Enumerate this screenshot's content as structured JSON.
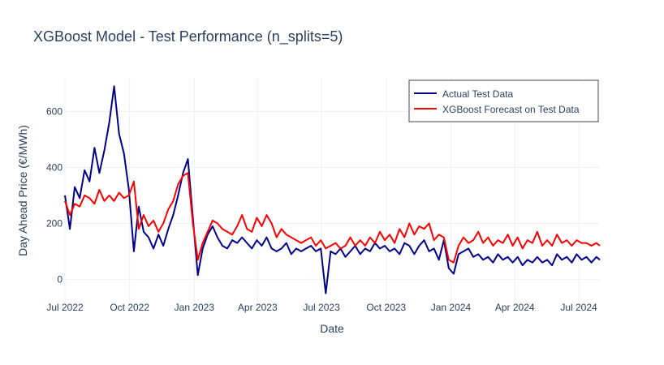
{
  "chart_data": {
    "type": "line",
    "title": "XGBoost Model - Test Performance (n_splits=5)",
    "xlabel": "Date",
    "ylabel": "Day Ahead Price (€/MWh)",
    "x_range": [
      "2022-07-01",
      "2024-07-31"
    ],
    "ylim": [
      -80,
      720
    ],
    "yticks": [
      0,
      200,
      400,
      600
    ],
    "xticks": [
      {
        "date": "2022-07-01",
        "label": "Jul 2022"
      },
      {
        "date": "2022-10-01",
        "label": "Oct 2022"
      },
      {
        "date": "2023-01-01",
        "label": "Jan 2023"
      },
      {
        "date": "2023-04-01",
        "label": "Apr 2023"
      },
      {
        "date": "2023-07-01",
        "label": "Jul 2023"
      },
      {
        "date": "2023-10-01",
        "label": "Oct 2023"
      },
      {
        "date": "2024-01-01",
        "label": "Jan 2024"
      },
      {
        "date": "2024-04-01",
        "label": "Apr 2024"
      },
      {
        "date": "2024-07-01",
        "label": "Jul 2024"
      }
    ],
    "grid": true,
    "legend_position": "top-right",
    "series": [
      {
        "name": "Actual Test Data",
        "color": "#00008b",
        "x": [
          "2022-07-01",
          "2022-07-08",
          "2022-07-15",
          "2022-07-22",
          "2022-07-29",
          "2022-08-05",
          "2022-08-12",
          "2022-08-19",
          "2022-08-26",
          "2022-09-02",
          "2022-09-09",
          "2022-09-16",
          "2022-09-23",
          "2022-09-30",
          "2022-10-07",
          "2022-10-14",
          "2022-10-21",
          "2022-10-28",
          "2022-11-04",
          "2022-11-11",
          "2022-11-18",
          "2022-11-25",
          "2022-12-02",
          "2022-12-09",
          "2022-12-16",
          "2022-12-23",
          "2022-12-30",
          "2023-01-06",
          "2023-01-13",
          "2023-01-20",
          "2023-01-27",
          "2023-02-03",
          "2023-02-10",
          "2023-02-17",
          "2023-02-24",
          "2023-03-03",
          "2023-03-10",
          "2023-03-17",
          "2023-03-24",
          "2023-03-31",
          "2023-04-07",
          "2023-04-14",
          "2023-04-21",
          "2023-04-28",
          "2023-05-05",
          "2023-05-12",
          "2023-05-19",
          "2023-05-26",
          "2023-06-02",
          "2023-06-09",
          "2023-06-16",
          "2023-06-23",
          "2023-06-30",
          "2023-07-07",
          "2023-07-14",
          "2023-07-21",
          "2023-07-28",
          "2023-08-04",
          "2023-08-11",
          "2023-08-18",
          "2023-08-25",
          "2023-09-01",
          "2023-09-08",
          "2023-09-15",
          "2023-09-22",
          "2023-09-29",
          "2023-10-06",
          "2023-10-13",
          "2023-10-20",
          "2023-10-27",
          "2023-11-03",
          "2023-11-10",
          "2023-11-17",
          "2023-11-24",
          "2023-12-01",
          "2023-12-08",
          "2023-12-15",
          "2023-12-22",
          "2023-12-29",
          "2024-01-05",
          "2024-01-12",
          "2024-01-19",
          "2024-01-26",
          "2024-02-02",
          "2024-02-09",
          "2024-02-16",
          "2024-02-23",
          "2024-03-01",
          "2024-03-08",
          "2024-03-15",
          "2024-03-22",
          "2024-03-29",
          "2024-04-05",
          "2024-04-12",
          "2024-04-19",
          "2024-04-26",
          "2024-05-03",
          "2024-05-10",
          "2024-05-17",
          "2024-05-24",
          "2024-05-31",
          "2024-06-07",
          "2024-06-14",
          "2024-06-21",
          "2024-06-28",
          "2024-07-05",
          "2024-07-12",
          "2024-07-19",
          "2024-07-26",
          "2024-07-31"
        ],
        "values": [
          300,
          180,
          330,
          290,
          390,
          350,
          470,
          380,
          460,
          560,
          690,
          520,
          450,
          320,
          100,
          260,
          170,
          150,
          110,
          160,
          120,
          180,
          230,
          300,
          380,
          430,
          220,
          15,
          110,
          160,
          190,
          150,
          120,
          110,
          140,
          130,
          150,
          130,
          110,
          140,
          120,
          150,
          110,
          100,
          110,
          130,
          90,
          110,
          100,
          110,
          120,
          100,
          110,
          -50,
          100,
          90,
          110,
          80,
          100,
          120,
          90,
          110,
          100,
          130,
          110,
          120,
          100,
          110,
          90,
          130,
          120,
          90,
          120,
          140,
          100,
          110,
          70,
          140,
          40,
          20,
          90,
          100,
          110,
          80,
          90,
          70,
          80,
          60,
          90,
          70,
          80,
          60,
          80,
          50,
          70,
          60,
          80,
          60,
          70,
          50,
          90,
          70,
          80,
          60,
          90,
          70,
          80,
          60,
          80,
          70
        ]
      },
      {
        "name": "XGBoost Forecast on Test Data",
        "color": "#ff0000",
        "x": [
          "2022-07-01",
          "2022-07-08",
          "2022-07-15",
          "2022-07-22",
          "2022-07-29",
          "2022-08-05",
          "2022-08-12",
          "2022-08-19",
          "2022-08-26",
          "2022-09-02",
          "2022-09-09",
          "2022-09-16",
          "2022-09-23",
          "2022-09-30",
          "2022-10-07",
          "2022-10-14",
          "2022-10-21",
          "2022-10-28",
          "2022-11-04",
          "2022-11-11",
          "2022-11-18",
          "2022-11-25",
          "2022-12-02",
          "2022-12-09",
          "2022-12-16",
          "2022-12-23",
          "2022-12-30",
          "2023-01-06",
          "2023-01-13",
          "2023-01-20",
          "2023-01-27",
          "2023-02-03",
          "2023-02-10",
          "2023-02-17",
          "2023-02-24",
          "2023-03-03",
          "2023-03-10",
          "2023-03-17",
          "2023-03-24",
          "2023-03-31",
          "2023-04-07",
          "2023-04-14",
          "2023-04-21",
          "2023-04-28",
          "2023-05-05",
          "2023-05-12",
          "2023-05-19",
          "2023-05-26",
          "2023-06-02",
          "2023-06-09",
          "2023-06-16",
          "2023-06-23",
          "2023-06-30",
          "2023-07-07",
          "2023-07-14",
          "2023-07-21",
          "2023-07-28",
          "2023-08-04",
          "2023-08-11",
          "2023-08-18",
          "2023-08-25",
          "2023-09-01",
          "2023-09-08",
          "2023-09-15",
          "2023-09-22",
          "2023-09-29",
          "2023-10-06",
          "2023-10-13",
          "2023-10-20",
          "2023-10-27",
          "2023-11-03",
          "2023-11-10",
          "2023-11-17",
          "2023-11-24",
          "2023-12-01",
          "2023-12-08",
          "2023-12-15",
          "2023-12-22",
          "2023-12-29",
          "2024-01-05",
          "2024-01-12",
          "2024-01-19",
          "2024-01-26",
          "2024-02-02",
          "2024-02-09",
          "2024-02-16",
          "2024-02-23",
          "2024-03-01",
          "2024-03-08",
          "2024-03-15",
          "2024-03-22",
          "2024-03-29",
          "2024-04-05",
          "2024-04-12",
          "2024-04-19",
          "2024-04-26",
          "2024-05-03",
          "2024-05-10",
          "2024-05-17",
          "2024-05-24",
          "2024-05-31",
          "2024-06-07",
          "2024-06-14",
          "2024-06-21",
          "2024-06-28",
          "2024-07-05",
          "2024-07-12",
          "2024-07-19",
          "2024-07-26",
          "2024-07-31"
        ],
        "values": [
          280,
          230,
          270,
          260,
          300,
          290,
          270,
          320,
          280,
          300,
          280,
          310,
          290,
          300,
          350,
          180,
          230,
          190,
          210,
          170,
          200,
          250,
          280,
          340,
          370,
          380,
          200,
          70,
          130,
          170,
          210,
          200,
          180,
          170,
          160,
          190,
          230,
          180,
          170,
          220,
          190,
          230,
          200,
          150,
          180,
          160,
          150,
          140,
          130,
          140,
          150,
          120,
          140,
          110,
          120,
          130,
          110,
          120,
          150,
          120,
          140,
          120,
          150,
          130,
          170,
          140,
          160,
          130,
          180,
          150,
          200,
          160,
          190,
          180,
          200,
          140,
          160,
          150,
          70,
          60,
          120,
          150,
          130,
          140,
          170,
          130,
          150,
          120,
          140,
          130,
          160,
          120,
          150,
          110,
          140,
          130,
          170,
          120,
          140,
          120,
          160,
          130,
          140,
          120,
          140,
          130,
          130,
          120,
          130,
          120
        ]
      }
    ]
  }
}
